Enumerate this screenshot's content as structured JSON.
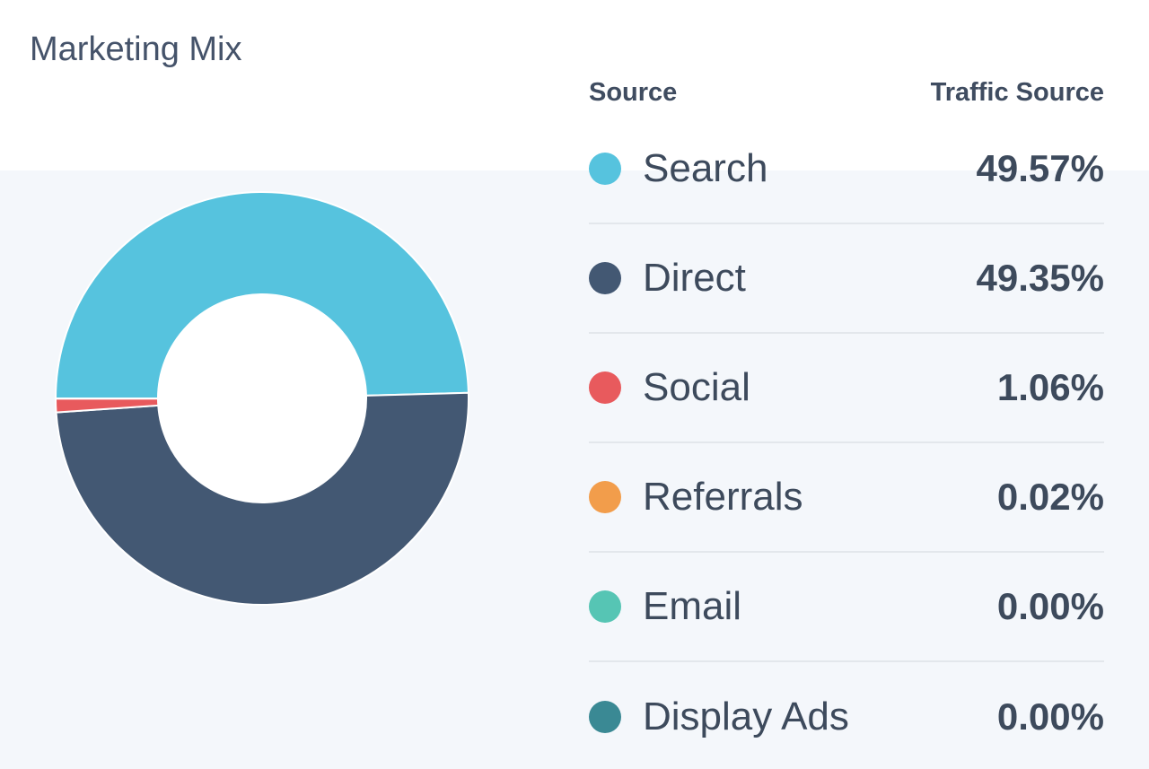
{
  "title": "Marketing Mix",
  "legend": {
    "header_source": "Source",
    "header_value": "Traffic Source"
  },
  "chart_data": {
    "type": "pie",
    "variant": "donut",
    "title": "Marketing Mix",
    "categories": [
      "Search",
      "Direct",
      "Social",
      "Referrals",
      "Email",
      "Display Ads"
    ],
    "values": [
      49.57,
      49.35,
      1.06,
      0.02,
      0.0,
      0.0
    ],
    "labels": [
      "49.57%",
      "49.35%",
      "1.06%",
      "0.02%",
      "0.00%",
      "0.00%"
    ],
    "colors": [
      "#56c3de",
      "#435873",
      "#e85a5d",
      "#f29d4b",
      "#56c5b4",
      "#3a8994"
    ],
    "legend_position": "right"
  }
}
